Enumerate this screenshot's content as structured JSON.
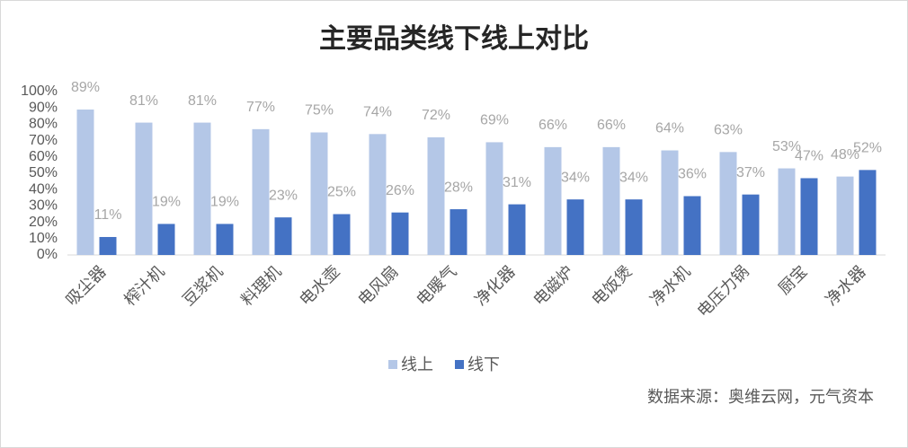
{
  "chart_data": {
    "type": "bar",
    "title": "主要品类线下线上对比",
    "categories": [
      "吸尘器",
      "榨汁机",
      "豆浆机",
      "料理机",
      "电水壶",
      "电风扇",
      "电暖气",
      "净化器",
      "电磁炉",
      "电饭煲",
      "净水机",
      "电压力锅",
      "厨宝",
      "净水器"
    ],
    "series": [
      {
        "name": "线上",
        "color": "#b4c7e7",
        "values": [
          89,
          81,
          81,
          77,
          75,
          74,
          72,
          69,
          66,
          66,
          64,
          63,
          53,
          48
        ],
        "value_labels": [
          "89%",
          "81%",
          "81%",
          "77%",
          "75%",
          "74%",
          "72%",
          "69%",
          "66%",
          "66%",
          "64%",
          "63%",
          "53%",
          "48%"
        ]
      },
      {
        "name": "线下",
        "color": "#4472c4",
        "values": [
          11,
          19,
          19,
          23,
          25,
          26,
          28,
          31,
          34,
          34,
          36,
          37,
          47,
          52
        ],
        "value_labels": [
          "11%",
          "19%",
          "19%",
          "23%",
          "25%",
          "26%",
          "28%",
          "31%",
          "34%",
          "34%",
          "36%",
          "37%",
          "47%",
          "52%"
        ]
      }
    ],
    "ylim": [
      0,
      100
    ],
    "yticks": [
      {
        "value": 0,
        "label": "0%"
      },
      {
        "value": 10,
        "label": "10%"
      },
      {
        "value": 20,
        "label": "20%"
      },
      {
        "value": 30,
        "label": "30%"
      },
      {
        "value": 40,
        "label": "40%"
      },
      {
        "value": 50,
        "label": "50%"
      },
      {
        "value": 60,
        "label": "60%"
      },
      {
        "value": 70,
        "label": "70%"
      },
      {
        "value": 80,
        "label": "80%"
      },
      {
        "value": 90,
        "label": "90%"
      },
      {
        "value": 100,
        "label": "100%"
      }
    ],
    "legend": "bottom",
    "source": "数据来源：奥维云网，元气资本"
  }
}
